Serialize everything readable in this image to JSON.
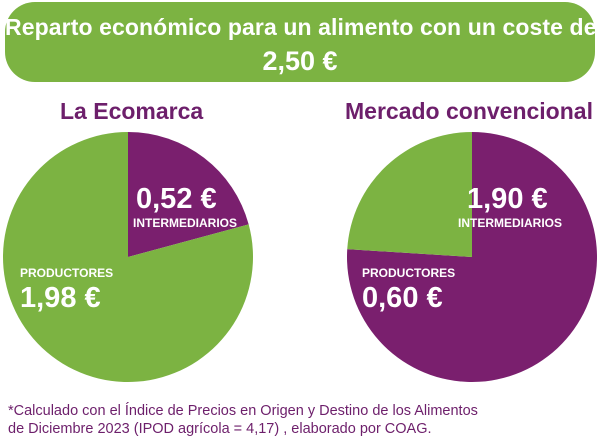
{
  "header": {
    "line1": "Reparto económico para un alimento con un coste de",
    "line2": "2,50 €"
  },
  "colors": {
    "green": "#7cb342",
    "purple": "#7a1f6e",
    "title_purple": "#6d1f6b"
  },
  "chart_data": [
    {
      "type": "pie",
      "title": "La Ecomarca",
      "total": 2.5,
      "slices": [
        {
          "label": "INTERMEDIARIOS",
          "value": 0.52,
          "display": "0,52 €",
          "color": "#7a1f6e"
        },
        {
          "label": "PRODUCTORES",
          "value": 1.98,
          "display": "1,98 €",
          "color": "#7cb342"
        }
      ]
    },
    {
      "type": "pie",
      "title": "Mercado convencional",
      "total": 2.5,
      "slices": [
        {
          "label": "INTERMEDIARIOS",
          "value": 1.9,
          "display": "1,90 €",
          "color": "#7a1f6e"
        },
        {
          "label": "PRODUCTORES",
          "value": 0.6,
          "display": "0,60 €",
          "color": "#7cb342"
        }
      ]
    }
  ],
  "footnote": {
    "line1": "*Calculado con el Índice de Precios en Origen y Destino de los Alimentos",
    "line2": "de Diciembre 2023 (IPOD agrícola = 4,17) , elaborado por COAG."
  }
}
